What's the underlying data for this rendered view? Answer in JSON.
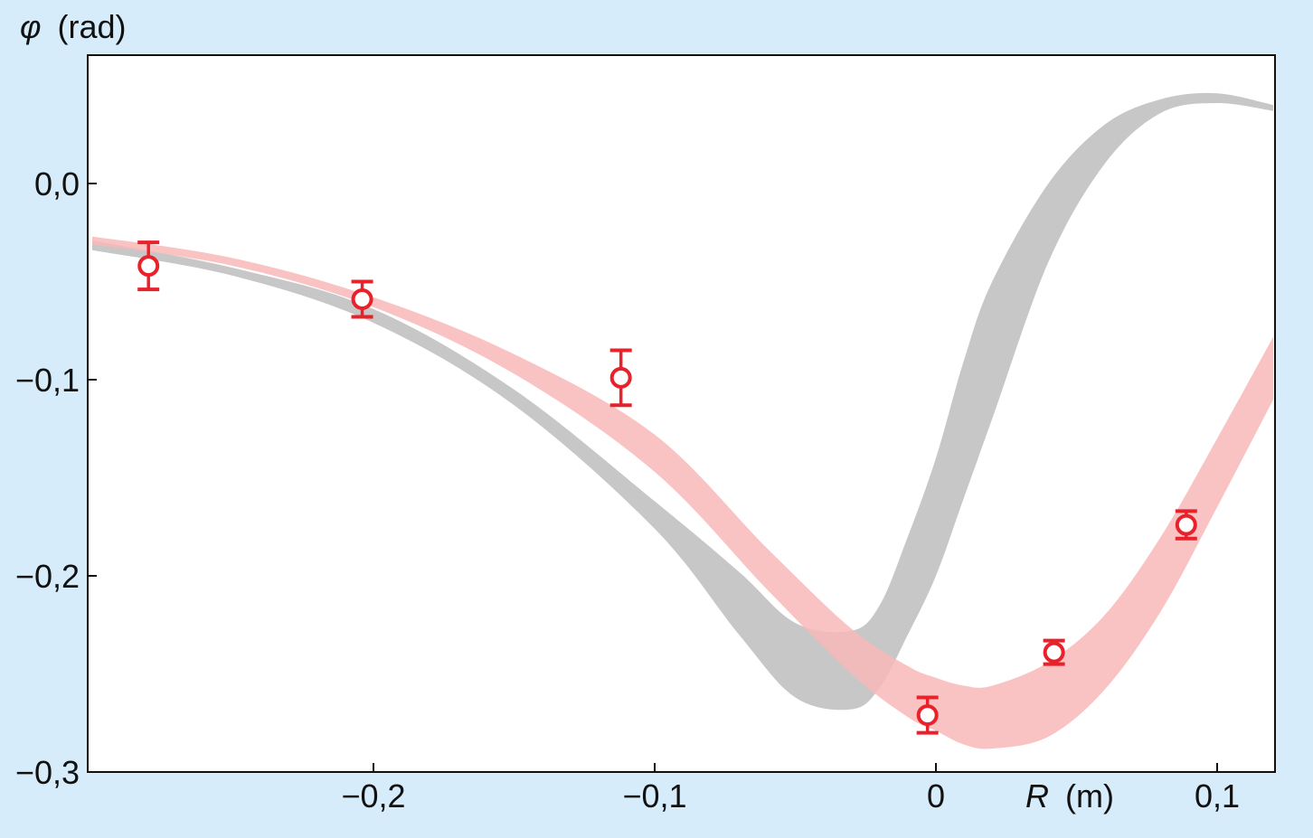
{
  "chart_data": {
    "type": "line",
    "title": "",
    "xlabel": {
      "symbol": "R",
      "unit": "(m)"
    },
    "ylabel": {
      "symbol": "φ",
      "unit": "(rad)"
    },
    "xlim": [
      -0.3,
      0.12
    ],
    "ylim": [
      -0.3,
      0.066
    ],
    "x_ticks": [
      {
        "value": -0.2,
        "label": "−0,2"
      },
      {
        "value": -0.1,
        "label": "−0,1"
      },
      {
        "value": 0,
        "label": "0"
      },
      {
        "value": 0.1,
        "label": "0,1"
      }
    ],
    "y_ticks": [
      {
        "value": 0.0,
        "label": "0,0"
      },
      {
        "value": -0.1,
        "label": "−0,1"
      },
      {
        "value": -0.2,
        "label": "−0,2"
      },
      {
        "value": -0.3,
        "label": "−0,3"
      }
    ],
    "grid": false,
    "colors": {
      "background": "#d6ecfa",
      "gray_band": "#c4c4c4",
      "pink_band": "#f9b9b9",
      "points": "#e8212b"
    },
    "bands": [
      {
        "color": "gray",
        "x": [
          -0.3,
          -0.25,
          -0.2,
          -0.15,
          -0.1,
          -0.07,
          -0.05,
          -0.03,
          -0.02,
          -0.01,
          0.0,
          0.01,
          0.02,
          0.04,
          0.06,
          0.08,
          0.1,
          0.12
        ],
        "lower": [
          -0.034,
          -0.047,
          -0.071,
          -0.113,
          -0.176,
          -0.23,
          -0.262,
          -0.268,
          -0.257,
          -0.23,
          -0.2,
          -0.16,
          -0.12,
          -0.04,
          0.01,
          0.036,
          0.041,
          0.037
        ],
        "upper": [
          -0.029,
          -0.043,
          -0.064,
          -0.105,
          -0.162,
          -0.198,
          -0.224,
          -0.228,
          -0.215,
          -0.18,
          -0.14,
          -0.09,
          -0.05,
          0.0,
          0.03,
          0.043,
          0.046,
          0.04
        ]
      },
      {
        "color": "pink",
        "x": [
          -0.3,
          -0.25,
          -0.2,
          -0.15,
          -0.1,
          -0.06,
          -0.03,
          -0.01,
          0.0,
          0.01,
          0.02,
          0.04,
          0.06,
          0.08,
          0.1,
          0.12
        ],
        "lower": [
          -0.031,
          -0.042,
          -0.063,
          -0.097,
          -0.147,
          -0.207,
          -0.25,
          -0.272,
          -0.279,
          -0.286,
          -0.288,
          -0.282,
          -0.258,
          -0.218,
          -0.165,
          -0.11
        ],
        "upper": [
          -0.027,
          -0.038,
          -0.058,
          -0.087,
          -0.128,
          -0.186,
          -0.227,
          -0.246,
          -0.252,
          -0.256,
          -0.256,
          -0.244,
          -0.22,
          -0.18,
          -0.13,
          -0.078
        ]
      }
    ],
    "points": [
      {
        "x": -0.28,
        "y": -0.042,
        "err": 0.012
      },
      {
        "x": -0.204,
        "y": -0.059,
        "err": 0.009
      },
      {
        "x": -0.112,
        "y": -0.099,
        "err": 0.014
      },
      {
        "x": -0.003,
        "y": -0.271,
        "err": 0.009
      },
      {
        "x": 0.042,
        "y": -0.239,
        "err": 0.006
      },
      {
        "x": 0.089,
        "y": -0.174,
        "err": 0.007
      }
    ]
  }
}
